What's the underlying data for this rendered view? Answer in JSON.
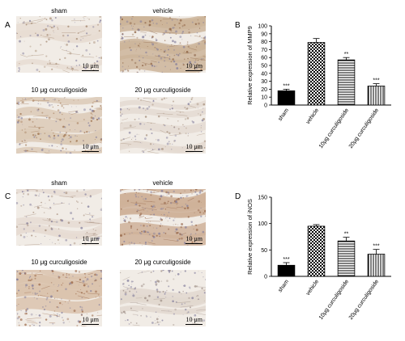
{
  "figure": {
    "panel_a": {
      "label": "A",
      "images": [
        {
          "caption": "sham",
          "scale": "10 μm",
          "tone": "#e7ddd2",
          "stain": "#9e8168",
          "density": 0.35
        },
        {
          "caption": "vehicle",
          "scale": "10 μm",
          "tone": "#cdb59a",
          "stain": "#8a5e3e",
          "density": 0.9
        },
        {
          "caption": "10 μg curculigoside",
          "scale": "10 μm",
          "tone": "#dccab6",
          "stain": "#9a6d48",
          "density": 0.65
        },
        {
          "caption": "20 μg curculigoside",
          "scale": "10 μm",
          "tone": "#e4dbd1",
          "stain": "#a28b77",
          "density": 0.4
        }
      ]
    },
    "panel_c": {
      "label": "C",
      "images": [
        {
          "caption": "sham",
          "scale": "10 μm",
          "tone": "#e6dcd2",
          "stain": "#a08674",
          "density": 0.35
        },
        {
          "caption": "vehicle",
          "scale": "10 μm",
          "tone": "#cfb299",
          "stain": "#8e5c3e",
          "density": 0.9
        },
        {
          "caption": "10 μg curculigoside",
          "scale": "10 μm",
          "tone": "#dac3ad",
          "stain": "#955f3e",
          "density": 0.7
        },
        {
          "caption": "20 μg curculigoside",
          "scale": "10 μm",
          "tone": "#e2d8cf",
          "stain": "#9b8b83",
          "density": 0.45
        }
      ]
    }
  },
  "chart_data": [
    {
      "panel": "B",
      "type": "bar",
      "categories": [
        "sham",
        "vehicle",
        "10μg curculigoside",
        "20μg curculigoside"
      ],
      "values": [
        18,
        79,
        57,
        24
      ],
      "errors": [
        2,
        5,
        3,
        3
      ],
      "significance": [
        "***",
        "",
        "**",
        "***"
      ],
      "patterns": [
        "solid",
        "checker",
        "hlines",
        "vlines"
      ],
      "ylabel": "Relative expression of MMP9",
      "ylim": [
        0,
        100
      ],
      "yticks": [
        0,
        10,
        20,
        30,
        40,
        50,
        60,
        70,
        80,
        90,
        100
      ]
    },
    {
      "panel": "D",
      "type": "bar",
      "categories": [
        "sham",
        "vehicle",
        "10μg curculigoside",
        "20μg curculigoside"
      ],
      "values": [
        21,
        95,
        67,
        42
      ],
      "errors": [
        5,
        3,
        7,
        9
      ],
      "significance": [
        "***",
        "",
        "**",
        "***"
      ],
      "patterns": [
        "solid",
        "checker",
        "hlines",
        "vlines"
      ],
      "ylabel": "Relative expression of iNOS",
      "ylim": [
        0,
        150
      ],
      "yticks": [
        0,
        50,
        100,
        150
      ]
    }
  ]
}
